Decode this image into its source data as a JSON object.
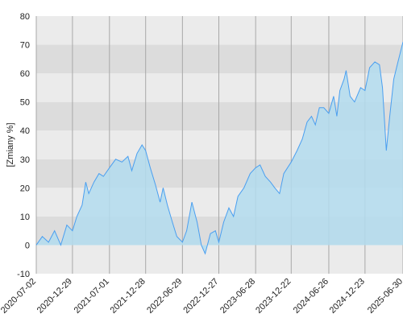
{
  "chart_data": {
    "type": "area",
    "y_label": "[Zmiany %]",
    "x": [
      "2020-07-02",
      "2020-08-01",
      "2020-09-01",
      "2020-10-01",
      "2020-11-01",
      "2020-12-01",
      "2020-12-29",
      "2021-01-20",
      "2021-02-15",
      "2021-03-05",
      "2021-03-20",
      "2021-04-15",
      "2021-05-10",
      "2021-06-01",
      "2021-07-01",
      "2021-08-01",
      "2021-09-01",
      "2021-10-01",
      "2021-10-20",
      "2021-11-15",
      "2021-12-10",
      "2021-12-28",
      "2022-01-20",
      "2022-02-15",
      "2022-03-10",
      "2022-03-25",
      "2022-04-15",
      "2022-05-10",
      "2022-06-01",
      "2022-06-29",
      "2022-07-20",
      "2022-08-15",
      "2022-09-10",
      "2022-10-01",
      "2022-10-20",
      "2022-11-15",
      "2022-12-10",
      "2022-12-27",
      "2023-01-20",
      "2023-02-15",
      "2023-03-10",
      "2023-04-01",
      "2023-05-01",
      "2023-06-01",
      "2023-06-28",
      "2023-07-20",
      "2023-08-15",
      "2023-09-10",
      "2023-10-01",
      "2023-10-25",
      "2023-11-15",
      "2023-12-22",
      "2024-01-20",
      "2024-02-15",
      "2024-03-10",
      "2024-04-01",
      "2024-04-20",
      "2024-05-10",
      "2024-06-01",
      "2024-06-26",
      "2024-07-20",
      "2024-08-05",
      "2024-08-20",
      "2024-09-10",
      "2024-09-20",
      "2024-10-10",
      "2024-11-01",
      "2024-12-01",
      "2024-12-23",
      "2025-01-15",
      "2025-02-10",
      "2025-03-05",
      "2025-03-20",
      "2025-04-08",
      "2025-04-25",
      "2025-05-15",
      "2025-06-05",
      "2025-06-30"
    ],
    "values": [
      0,
      3,
      1,
      5,
      0,
      7,
      5,
      10,
      14,
      22,
      18,
      22,
      25,
      24,
      27,
      30,
      29,
      31,
      26,
      32,
      35,
      33,
      27,
      21,
      15,
      20,
      14,
      8,
      3,
      1,
      5,
      15,
      8,
      0,
      -3,
      4,
      5,
      1,
      8,
      13,
      10,
      17,
      20,
      25,
      27,
      28,
      24,
      22,
      20,
      18,
      25,
      29,
      33,
      37,
      43,
      45,
      42,
      48,
      48,
      46,
      52,
      45,
      54,
      58,
      61,
      52,
      50,
      55,
      54,
      62,
      64,
      63,
      55,
      33,
      45,
      58,
      64,
      71
    ],
    "color": "#4a9ff0",
    "fill": "#b3dcef",
    "xlim": [
      "2020-07-02",
      "2025-06-30"
    ],
    "xticks": [
      "2020-07-02",
      "2020-12-29",
      "2021-07-01",
      "2021-12-28",
      "2022-06-29",
      "2022-12-27",
      "2023-06-28",
      "2023-12-22",
      "2024-06-26",
      "2024-12-23",
      "2025-06-30"
    ],
    "ylim": [
      -10,
      80
    ],
    "yticks": [
      -10,
      0,
      10,
      20,
      30,
      40,
      50,
      60,
      70,
      80
    ],
    "grid": true
  }
}
